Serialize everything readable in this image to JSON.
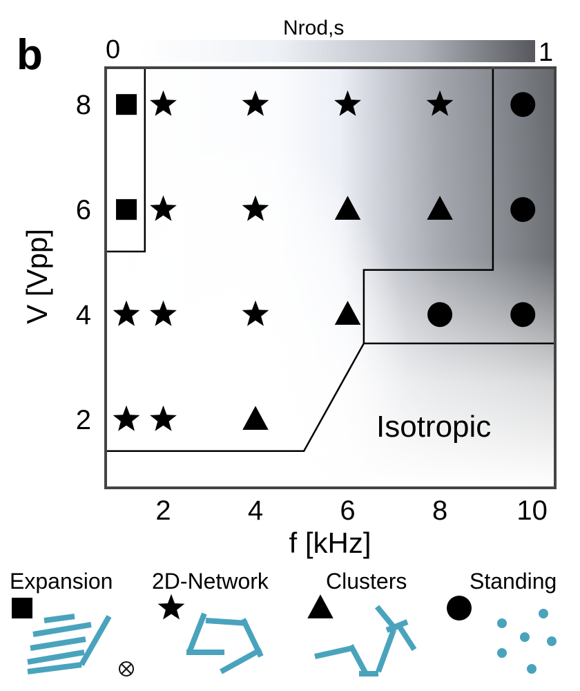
{
  "panel_label": "b",
  "colorbar": {
    "label": "Nrod,s",
    "min_label": "0",
    "max_label": "1"
  },
  "region_label": "Isotropic",
  "chart_data": {
    "type": "scatter",
    "title": "",
    "xlabel": "f [kHz]",
    "ylabel": "V [Vpp]",
    "xlim": [
      0.75,
      10.5
    ],
    "ylim": [
      0.7,
      8.7
    ],
    "xticks": [
      2,
      4,
      6,
      8,
      10
    ],
    "yticks": [
      2,
      4,
      6,
      8
    ],
    "grid": false,
    "legend_position": "bottom",
    "background": "heatmap of Nrod,s from 0 (white) to 1 (dark gray), increasing toward high f",
    "series": [
      {
        "name": "Expansion",
        "marker": "square",
        "points": [
          {
            "x": 1.2,
            "y": 8
          },
          {
            "x": 1.2,
            "y": 6
          }
        ]
      },
      {
        "name": "2D-Network",
        "marker": "star",
        "points": [
          {
            "x": 2,
            "y": 8
          },
          {
            "x": 4,
            "y": 8
          },
          {
            "x": 6,
            "y": 8
          },
          {
            "x": 8,
            "y": 8
          },
          {
            "x": 2,
            "y": 6
          },
          {
            "x": 4,
            "y": 6
          },
          {
            "x": 1.2,
            "y": 4
          },
          {
            "x": 2,
            "y": 4
          },
          {
            "x": 4,
            "y": 4
          },
          {
            "x": 1.2,
            "y": 2
          },
          {
            "x": 2,
            "y": 2
          }
        ]
      },
      {
        "name": "Clusters",
        "marker": "triangle",
        "points": [
          {
            "x": 6,
            "y": 6
          },
          {
            "x": 8,
            "y": 6
          },
          {
            "x": 6,
            "y": 4
          },
          {
            "x": 4,
            "y": 2
          }
        ]
      },
      {
        "name": "Standing",
        "marker": "circle",
        "points": [
          {
            "x": 9.8,
            "y": 8
          },
          {
            "x": 9.8,
            "y": 6
          },
          {
            "x": 8,
            "y": 4
          },
          {
            "x": 9.8,
            "y": 4
          }
        ]
      }
    ],
    "boundaries": [
      {
        "label": "Expansion region",
        "points": [
          [
            0.75,
            8.7
          ],
          [
            1.6,
            8.7
          ],
          [
            1.6,
            5.2
          ],
          [
            0.75,
            5.2
          ]
        ]
      },
      {
        "label": "Isotropic region upper boundary",
        "points": [
          [
            0.75,
            1.4
          ],
          [
            5.05,
            1.4
          ],
          [
            6.35,
            3.45
          ],
          [
            10.5,
            3.45
          ]
        ]
      },
      {
        "label": "Standing region boundary",
        "points": [
          [
            6.35,
            3.45
          ],
          [
            6.35,
            4.85
          ],
          [
            9.15,
            4.85
          ],
          [
            9.15,
            8.7
          ]
        ]
      }
    ]
  },
  "legend": [
    {
      "label": "Expansion",
      "marker": "square"
    },
    {
      "label": "2D-Network",
      "marker": "star"
    },
    {
      "label": "Clusters",
      "marker": "triangle"
    },
    {
      "label": "Standing",
      "marker": "circle"
    }
  ],
  "colors": {
    "marker": "#000000",
    "rod": "#4aa3bd",
    "frame": "#444444",
    "boundary": "#000000"
  }
}
